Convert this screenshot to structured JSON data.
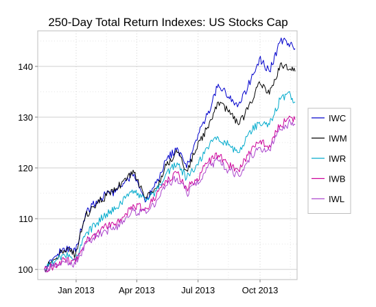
{
  "chart_data": {
    "type": "line",
    "title": "250-Day Total Return Indexes: US Stocks Cap",
    "xlabel": "",
    "ylabel": "",
    "ylim": [
      98,
      147
    ],
    "xlim": [
      "2012-11-05",
      "2013-11-25"
    ],
    "yticks": [
      100,
      110,
      120,
      130,
      140
    ],
    "xticks": [
      {
        "date": "2013-01-01",
        "label": "Jan 2013"
      },
      {
        "date": "2013-04-01",
        "label": "Apr 2013"
      },
      {
        "date": "2013-07-01",
        "label": "Jul 2013"
      },
      {
        "date": "2013-10-01",
        "label": "Oct 2013"
      }
    ],
    "grid": true,
    "legend_position": "right",
    "x": [
      "2012-11-15",
      "2012-11-30",
      "2012-12-14",
      "2012-12-31",
      "2013-01-15",
      "2013-01-31",
      "2013-02-15",
      "2013-02-28",
      "2013-03-15",
      "2013-03-28",
      "2013-04-15",
      "2013-04-30",
      "2013-05-15",
      "2013-05-31",
      "2013-06-14",
      "2013-06-28",
      "2013-07-15",
      "2013-07-31",
      "2013-08-15",
      "2013-08-30",
      "2013-09-13",
      "2013-09-30",
      "2013-10-15",
      "2013-10-31",
      "2013-11-15",
      "2013-11-22"
    ],
    "series": [
      {
        "name": "IWC",
        "color": "#0000cc",
        "values": [
          100.0,
          102.5,
          104.2,
          103.5,
          111.0,
          113.5,
          114.8,
          115.2,
          117.5,
          118.8,
          113.5,
          117.0,
          121.5,
          124.0,
          120.0,
          125.5,
          130.5,
          136.5,
          134.0,
          132.5,
          136.0,
          141.5,
          139.0,
          145.0,
          144.5,
          143.5
        ]
      },
      {
        "name": "IWM",
        "color": "#000000",
        "values": [
          100.0,
          102.0,
          103.8,
          103.0,
          110.5,
          113.0,
          114.5,
          115.5,
          118.0,
          119.0,
          114.0,
          116.0,
          120.5,
          123.0,
          119.5,
          123.5,
          128.0,
          133.0,
          131.0,
          128.5,
          131.5,
          137.0,
          134.5,
          140.5,
          139.5,
          139.0
        ]
      },
      {
        "name": "IWR",
        "color": "#00aacc",
        "values": [
          100.0,
          101.5,
          103.0,
          102.0,
          107.0,
          109.0,
          111.0,
          111.8,
          114.0,
          115.5,
          113.5,
          115.5,
          119.0,
          121.0,
          118.0,
          120.5,
          124.0,
          126.0,
          124.5,
          123.0,
          126.5,
          129.0,
          128.5,
          133.5,
          134.5,
          133.0
        ]
      },
      {
        "name": "IWB",
        "color": "#cc0099",
        "values": [
          100.0,
          100.8,
          102.0,
          101.5,
          105.5,
          107.0,
          108.5,
          109.0,
          111.0,
          112.5,
          112.0,
          114.5,
          117.5,
          119.0,
          116.0,
          117.5,
          121.0,
          122.5,
          120.5,
          119.5,
          122.5,
          125.0,
          124.5,
          128.5,
          130.0,
          129.5
        ]
      },
      {
        "name": "IWL",
        "color": "#aa44cc",
        "values": [
          100.0,
          100.5,
          101.5,
          101.0,
          105.0,
          106.5,
          107.5,
          108.0,
          110.0,
          111.5,
          111.0,
          113.5,
          116.5,
          118.0,
          115.0,
          116.5,
          120.0,
          121.5,
          119.5,
          118.5,
          121.5,
          124.0,
          123.5,
          127.5,
          129.0,
          128.5
        ]
      }
    ]
  }
}
